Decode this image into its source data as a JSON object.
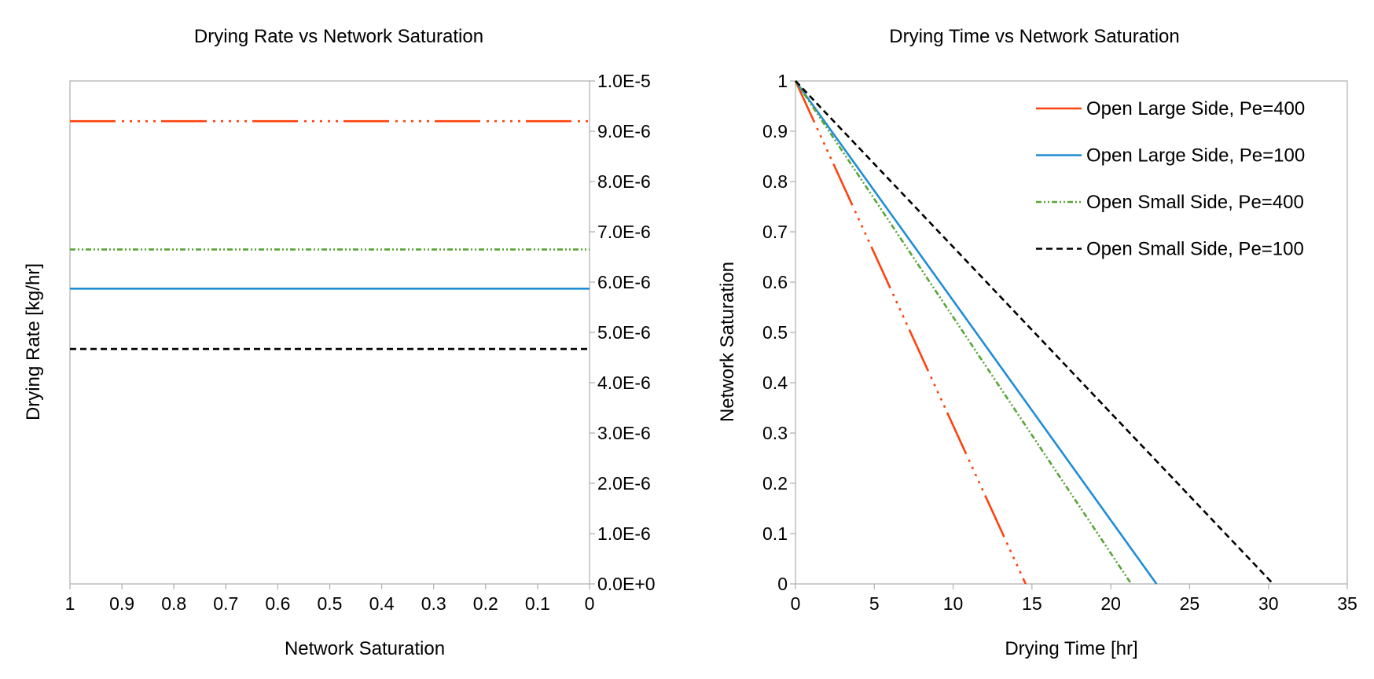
{
  "charts": [
    {
      "type": "line",
      "title": "Drying Rate vs Network Saturation",
      "xlabel": "Network Saturation",
      "ylabel": "Drying Rate [kg/hr]",
      "x_reversed": true,
      "y_axis_side": "right",
      "xlim": [
        0,
        1
      ],
      "ylim": [
        0,
        1e-05
      ],
      "x_ticks": [
        1,
        0.9,
        0.8,
        0.7,
        0.6,
        0.5,
        0.4,
        0.3,
        0.2,
        0.1,
        0
      ],
      "x_tick_labels": [
        "1",
        "0.9",
        "0.8",
        "0.7",
        "0.6",
        "0.5",
        "0.4",
        "0.3",
        "0.2",
        "0.1",
        "0"
      ],
      "y_ticks": [
        0,
        1e-06,
        2e-06,
        3e-06,
        4e-06,
        5e-06,
        6e-06,
        7e-06,
        8e-06,
        9e-06,
        1e-05
      ],
      "y_tick_labels": [
        "0.0E+0",
        "1.0E-6",
        "2.0E-6",
        "3.0E-6",
        "4.0E-6",
        "5.0E-6",
        "6.0E-6",
        "7.0E-6",
        "8.0E-6",
        "9.0E-6",
        "1.0E-5"
      ],
      "grid": false,
      "legend": "none",
      "series": [
        {
          "name": "Open Large Side, Pe=400",
          "color": "#ff420e",
          "style": "long-dash-dot-dot",
          "x": [
            1,
            0
          ],
          "y": [
            9.2e-06,
            9.2e-06
          ]
        },
        {
          "name": "Open Large Side, Pe=100",
          "color": "#1f8dd6",
          "style": "solid",
          "x": [
            1,
            0
          ],
          "y": [
            5.87e-06,
            5.87e-06
          ]
        },
        {
          "name": "Open Small Side, Pe=400",
          "color": "#57a534",
          "style": "dash-dot-dot",
          "x": [
            1,
            0
          ],
          "y": [
            6.65e-06,
            6.65e-06
          ]
        },
        {
          "name": "Open Small Side, Pe=100",
          "color": "#000000",
          "style": "dashed",
          "x": [
            1,
            0
          ],
          "y": [
            4.67e-06,
            4.67e-06
          ]
        }
      ]
    },
    {
      "type": "line",
      "title": "Drying Time vs Network Saturation",
      "xlabel": "Drying Time [hr]",
      "ylabel": "Network Saturation",
      "xlim": [
        0,
        35
      ],
      "ylim": [
        0,
        1
      ],
      "x_ticks": [
        0,
        5,
        10,
        15,
        20,
        25,
        30,
        35
      ],
      "x_tick_labels": [
        "0",
        "5",
        "10",
        "15",
        "20",
        "25",
        "30",
        "35"
      ],
      "y_ticks": [
        0,
        0.1,
        0.2,
        0.3,
        0.4,
        0.5,
        0.6,
        0.7,
        0.8,
        0.9,
        1
      ],
      "y_tick_labels": [
        "0",
        "0.1",
        "0.2",
        "0.3",
        "0.4",
        "0.5",
        "0.6",
        "0.7",
        "0.8",
        "0.9",
        "1"
      ],
      "grid": false,
      "legend": "top-right",
      "series": [
        {
          "name": "Open Large Side, Pe=400",
          "color": "#ff420e",
          "style": "long-dash-dot-dot",
          "x": [
            0,
            14.6
          ],
          "y": [
            1,
            0
          ]
        },
        {
          "name": "Open Large Side, Pe=100",
          "color": "#1f8dd6",
          "style": "solid",
          "x": [
            0,
            22.9
          ],
          "y": [
            1,
            0
          ]
        },
        {
          "name": "Open Small Side, Pe=400",
          "color": "#57a534",
          "style": "dash-dot-dot",
          "x": [
            0,
            21.3
          ],
          "y": [
            1,
            0
          ]
        },
        {
          "name": "Open Small Side, Pe=100",
          "color": "#000000",
          "style": "dashed",
          "x": [
            0,
            30.3
          ],
          "y": [
            1,
            0
          ]
        }
      ]
    }
  ]
}
